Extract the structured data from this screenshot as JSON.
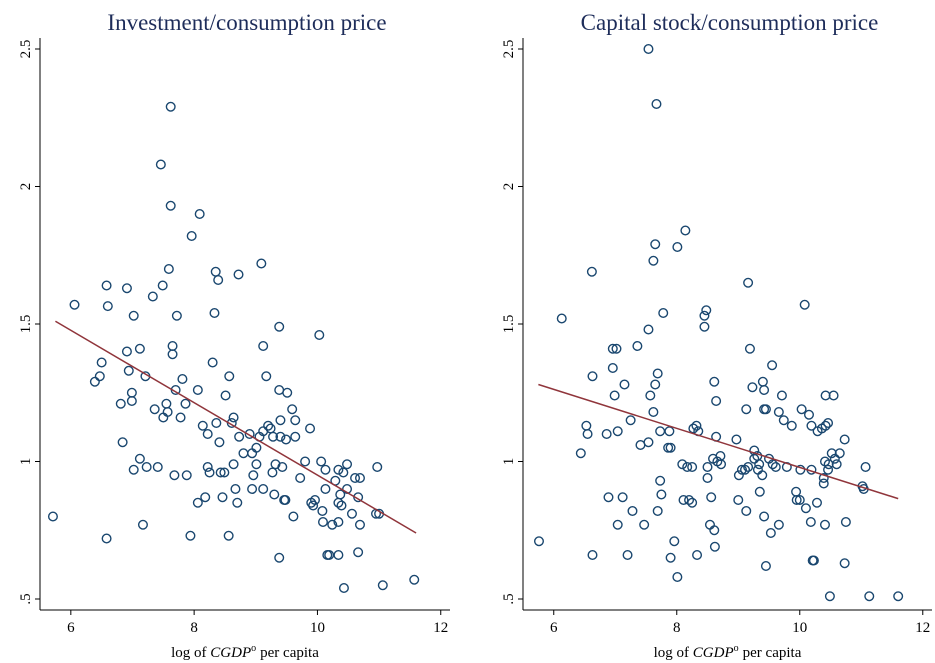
{
  "chart_data": [
    {
      "type": "scatter",
      "title": "Investment/consumption price",
      "xlabel": {
        "before": "log of",
        "italic": "CGDP",
        "sup": "o",
        "after": "per capita"
      },
      "xlim": [
        5.5,
        12.15
      ],
      "xticks": [
        6,
        8,
        10,
        12
      ],
      "ylim": [
        0.46,
        2.54
      ],
      "yticks": [
        {
          "value": 0.5,
          "label": ".5"
        },
        1,
        1.5,
        2,
        2.5
      ],
      "color": "#1a476f",
      "x": [
        5.71,
        6.06,
        6.58,
        6.6,
        6.39,
        6.47,
        6.5,
        6.58,
        6.81,
        6.84,
        6.91,
        6.91,
        6.94,
        6.99,
        6.99,
        7.02,
        7.02,
        7.12,
        7.12,
        7.17,
        7.21,
        7.23,
        7.33,
        7.36,
        7.41,
        7.49,
        7.46,
        7.5,
        7.55,
        7.57,
        7.59,
        7.62,
        7.62,
        7.65,
        7.65,
        7.68,
        7.72,
        7.7,
        7.78,
        7.81,
        7.86,
        7.88,
        7.96,
        7.94,
        8.06,
        8.09,
        8.06,
        8.14,
        8.18,
        8.22,
        8.22,
        8.25,
        8.3,
        8.33,
        8.35,
        8.39,
        8.36,
        8.41,
        8.43,
        8.46,
        8.49,
        8.51,
        8.57,
        8.56,
        8.61,
        8.64,
        8.64,
        8.67,
        8.7,
        8.72,
        8.73,
        8.8,
        8.9,
        8.96,
        8.94,
        8.94,
        9.01,
        9.06,
        9.01,
        9.09,
        9.12,
        9.12,
        9.12,
        9.17,
        9.2,
        9.24,
        9.27,
        9.28,
        9.32,
        9.3,
        9.38,
        9.4,
        9.4,
        9.38,
        9.38,
        9.43,
        9.46,
        9.49,
        9.51,
        9.48,
        9.59,
        9.61,
        9.64,
        9.64,
        9.72,
        9.8,
        9.88,
        9.9,
        9.93,
        9.96,
        10.03,
        10.06,
        10.08,
        10.13,
        10.09,
        10.13,
        10.16,
        10.19,
        10.24,
        10.29,
        10.34,
        10.34,
        10.34,
        10.34,
        10.37,
        10.39,
        10.42,
        10.43,
        10.48,
        10.48,
        10.56,
        10.61,
        10.66,
        10.66,
        10.69,
        10.69,
        10.97,
        10.95,
        11.0,
        11.06,
        11.57
      ],
      "values": [
        0.8,
        1.57,
        1.64,
        1.565,
        1.29,
        1.31,
        1.36,
        0.72,
        1.21,
        1.07,
        1.63,
        1.4,
        1.33,
        1.25,
        1.22,
        0.97,
        1.53,
        1.41,
        1.01,
        0.77,
        1.31,
        0.98,
        1.6,
        1.19,
        0.98,
        1.64,
        2.08,
        1.16,
        1.21,
        1.18,
        1.7,
        1.93,
        2.29,
        1.39,
        1.42,
        0.95,
        1.53,
        1.26,
        1.16,
        1.3,
        1.21,
        0.95,
        1.82,
        0.73,
        1.26,
        1.9,
        0.85,
        1.13,
        0.87,
        1.1,
        0.98,
        0.96,
        1.36,
        1.54,
        1.69,
        1.66,
        1.14,
        1.07,
        0.96,
        0.87,
        0.96,
        1.24,
        1.31,
        0.73,
        1.14,
        1.16,
        0.99,
        0.9,
        0.85,
        1.68,
        1.09,
        1.03,
        1.1,
        0.95,
        1.03,
        0.9,
        0.99,
        1.09,
        1.05,
        1.72,
        1.42,
        1.11,
        0.9,
        1.31,
        1.13,
        1.12,
        0.96,
        1.09,
        0.99,
        0.88,
        1.26,
        1.15,
        1.09,
        1.49,
        0.65,
        0.98,
        0.86,
        1.08,
        1.25,
        0.86,
        1.19,
        0.8,
        1.15,
        1.09,
        0.94,
        1.0,
        1.12,
        0.85,
        0.84,
        0.86,
        1.46,
        1.0,
        0.82,
        0.9,
        0.78,
        0.97,
        0.66,
        0.66,
        0.77,
        0.93,
        0.97,
        0.85,
        0.78,
        0.66,
        0.88,
        0.84,
        0.96,
        0.54,
        0.99,
        0.9,
        0.81,
        0.94,
        0.67,
        0.87,
        0.94,
        0.77,
        0.98,
        0.81,
        0.81,
        0.55,
        0.57
      ],
      "fit": {
        "x": [
          5.75,
          11.6
        ],
        "values": [
          1.51,
          0.74
        ],
        "color": "#90353b"
      }
    },
    {
      "type": "scatter",
      "title": "Capital stock/consumption price",
      "xlabel": {
        "before": "log of",
        "italic": "CGDP",
        "sup": "o",
        "after": "per capita"
      },
      "xlim": [
        5.5,
        12.15
      ],
      "xticks": [
        6,
        8,
        10,
        12
      ],
      "ylim": [
        0.46,
        2.54
      ],
      "yticks": [
        {
          "value": 0.5,
          "label": ".5"
        },
        1,
        1.5,
        2,
        2.5
      ],
      "color": "#1a476f",
      "x": [
        5.76,
        6.13,
        6.53,
        6.55,
        6.62,
        6.63,
        6.63,
        6.44,
        6.89,
        6.86,
        6.96,
        6.96,
        6.99,
        7.02,
        7.04,
        7.04,
        7.12,
        7.15,
        7.2,
        7.25,
        7.28,
        7.36,
        7.41,
        7.47,
        7.54,
        7.54,
        7.54,
        7.57,
        7.62,
        7.65,
        7.67,
        7.65,
        7.62,
        7.69,
        7.69,
        7.73,
        7.75,
        7.78,
        7.73,
        7.86,
        7.88,
        7.9,
        7.9,
        7.96,
        8.01,
        8.01,
        8.09,
        8.11,
        8.14,
        8.17,
        8.2,
        8.25,
        8.25,
        8.27,
        8.32,
        8.35,
        8.33,
        8.45,
        8.45,
        8.48,
        8.5,
        8.5,
        8.54,
        8.56,
        8.59,
        8.61,
        8.61,
        8.62,
        8.64,
        8.64,
        8.66,
        8.71,
        8.72,
        8.97,
        9.0,
        9.01,
        9.06,
        9.11,
        9.13,
        9.13,
        9.16,
        9.16,
        9.19,
        9.23,
        9.26,
        9.26,
        9.31,
        9.32,
        9.34,
        9.35,
        9.39,
        9.4,
        9.42,
        9.42,
        9.42,
        9.45,
        9.45,
        9.5,
        9.53,
        9.55,
        9.56,
        9.61,
        9.66,
        9.66,
        9.71,
        9.74,
        9.79,
        9.87,
        9.94,
        9.95,
        10.0,
        10.01,
        10.03,
        10.08,
        10.1,
        10.15,
        10.18,
        10.19,
        10.19,
        10.21,
        10.23,
        10.28,
        10.29,
        10.36,
        10.39,
        10.39,
        10.41,
        10.41,
        10.42,
        10.42,
        10.46,
        10.46,
        10.47,
        10.49,
        10.52,
        10.55,
        10.57,
        10.6,
        10.65,
        10.73,
        10.75,
        10.73,
        11.02,
        11.04,
        11.07,
        11.13,
        11.6
      ],
      "values": [
        0.71,
        1.52,
        1.13,
        1.1,
        1.69,
        1.31,
        0.66,
        1.03,
        0.87,
        1.1,
        1.41,
        1.34,
        1.24,
        1.41,
        1.11,
        0.77,
        0.87,
        1.28,
        0.66,
        1.15,
        0.82,
        1.42,
        1.06,
        0.77,
        1.07,
        1.48,
        2.5,
        1.24,
        1.18,
        1.28,
        2.3,
        1.79,
        1.73,
        1.32,
        0.82,
        0.93,
        0.88,
        1.54,
        1.11,
        1.05,
        1.11,
        1.05,
        0.65,
        0.71,
        1.78,
        0.58,
        0.99,
        0.86,
        1.84,
        0.98,
        0.86,
        0.98,
        0.85,
        1.12,
        1.13,
        1.11,
        0.66,
        1.53,
        1.49,
        1.55,
        0.98,
        0.94,
        0.77,
        0.87,
        1.01,
        0.75,
        1.29,
        0.69,
        1.22,
        1.09,
        1.0,
        1.02,
        0.99,
        1.08,
        0.86,
        0.95,
        0.97,
        0.97,
        1.19,
        0.82,
        1.65,
        0.98,
        1.41,
        1.27,
        1.04,
        1.01,
        1.02,
        0.97,
        0.99,
        0.89,
        0.95,
        1.29,
        1.19,
        1.26,
        0.8,
        1.19,
        0.62,
        1.01,
        0.74,
        1.35,
        0.99,
        0.98,
        1.18,
        0.77,
        1.24,
        1.15,
        0.98,
        1.13,
        0.89,
        0.86,
        0.86,
        0.97,
        1.19,
        1.57,
        0.83,
        1.17,
        0.78,
        0.97,
        1.13,
        0.64,
        0.64,
        0.85,
        1.11,
        1.12,
        0.94,
        0.92,
        1.0,
        0.77,
        1.24,
        1.13,
        1.14,
        0.97,
        0.99,
        0.51,
        1.03,
        1.24,
        1.01,
        0.99,
        1.03,
        1.08,
        0.78,
        0.63,
        0.91,
        0.9,
        0.98,
        0.51,
        0.51
      ],
      "fit": {
        "x": [
          5.75,
          11.6
        ],
        "values": [
          1.28,
          0.865
        ],
        "color": "#90353b"
      }
    }
  ]
}
